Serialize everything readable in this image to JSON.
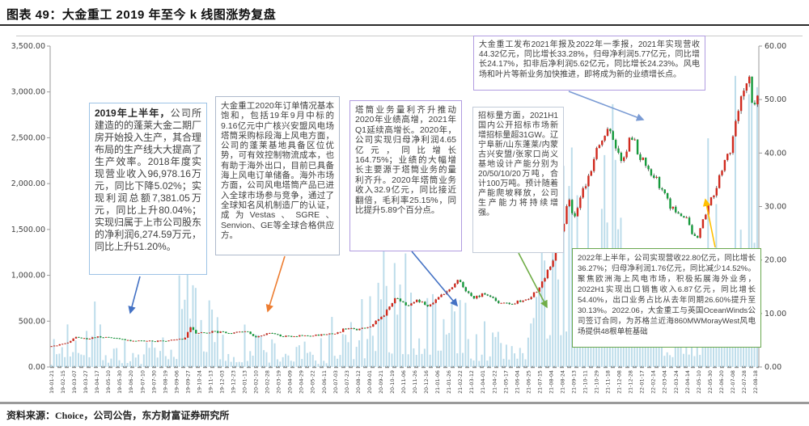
{
  "title": "图表 49：大金重工 2019 年至今 k 线图涨势复盘",
  "source": "资料来源：Choice，公司公告，东方财富证券研究所",
  "chart_data": {
    "type": "candlestick+volume",
    "title": "大金重工 2019 年至今 k 线图涨势复盘",
    "left_axis": {
      "role": "volume",
      "max": 3500,
      "step": 500,
      "ticks": [
        "3,500.00",
        "3,000.00",
        "2,500.00",
        "2,000.00",
        "1,500.00",
        "1,000.00",
        "500.00",
        "0.00"
      ]
    },
    "right_axis": {
      "role": "price",
      "max": 60,
      "step": 10,
      "ticks": [
        "60.00",
        "50.00",
        "40.00",
        "30.00",
        "20.00",
        "10.00",
        "0.00"
      ]
    },
    "x_ticks": [
      "19-01-21",
      "19-02-15",
      "19-03-07",
      "19-03-27",
      "19-04-17",
      "19-05-10",
      "19-05-30",
      "19-06-20",
      "19-07-10",
      "19-07-30",
      "19-08-19",
      "19-09-06",
      "19-09-27",
      "19-10-24",
      "19-11-13",
      "19-12-03",
      "19-12-23",
      "20-01-13",
      "20-02-10",
      "20-02-28",
      "20-03-19",
      "20-04-09",
      "20-04-29",
      "20-05-22",
      "20-06-11",
      "20-07-03",
      "20-07-23",
      "20-08-12",
      "20-09-01",
      "20-09-21",
      "20-10-19",
      "20-11-06",
      "20-11-26",
      "20-12-16",
      "21-01-06",
      "21-01-26",
      "21-02-22",
      "21-03-12",
      "21-04-01",
      "21-04-22",
      "21-05-17",
      "21-06-04",
      "21-06-25",
      "21-07-15",
      "21-08-04",
      "21-08-24",
      "21-09-13",
      "21-10-11",
      "21-10-29",
      "21-11-18",
      "21-12-08",
      "21-12-28",
      "22-01-17",
      "22-02-14",
      "22-03-04",
      "22-03-24",
      "22-04-14",
      "22-05-10",
      "22-05-30",
      "22-06-20",
      "22-07-08",
      "22-07-28",
      "22-08-18"
    ],
    "price_keypoints": [
      [
        0,
        3.8
      ],
      [
        0.02,
        4.4
      ],
      [
        0.034,
        5.5
      ],
      [
        0.05,
        5.3
      ],
      [
        0.066,
        5.7
      ],
      [
        0.09,
        5.4
      ],
      [
        0.115,
        4.9
      ],
      [
        0.145,
        4.8
      ],
      [
        0.175,
        5.0
      ],
      [
        0.188,
        5.3
      ],
      [
        0.196,
        7.4
      ],
      [
        0.205,
        6.2
      ],
      [
        0.227,
        6.6
      ],
      [
        0.258,
        6.4
      ],
      [
        0.274,
        6.8
      ],
      [
        0.29,
        5.6
      ],
      [
        0.309,
        6.4
      ],
      [
        0.327,
        5.7
      ],
      [
        0.373,
        5.9
      ],
      [
        0.405,
        6.3
      ],
      [
        0.415,
        7.2
      ],
      [
        0.436,
        7.0
      ],
      [
        0.451,
        7.6
      ],
      [
        0.47,
        9.5
      ],
      [
        0.488,
        13.4
      ],
      [
        0.502,
        11.4
      ],
      [
        0.517,
        12.3
      ],
      [
        0.533,
        11.5
      ],
      [
        0.549,
        13.0
      ],
      [
        0.564,
        14.5
      ],
      [
        0.575,
        16.3
      ],
      [
        0.596,
        13.0
      ],
      [
        0.614,
        13.6
      ],
      [
        0.633,
        12.2
      ],
      [
        0.649,
        11.8
      ],
      [
        0.663,
        12.4
      ],
      [
        0.679,
        13.1
      ],
      [
        0.694,
        15.5
      ],
      [
        0.71,
        20.0
      ],
      [
        0.725,
        26.5
      ],
      [
        0.733,
        31.5
      ],
      [
        0.74,
        27.5
      ],
      [
        0.753,
        33.0
      ],
      [
        0.768,
        38.5
      ],
      [
        0.777,
        43.0
      ],
      [
        0.791,
        44.8
      ],
      [
        0.806,
        38.0
      ],
      [
        0.821,
        43.5
      ],
      [
        0.837,
        38.5
      ],
      [
        0.858,
        35.0
      ],
      [
        0.877,
        30.0
      ],
      [
        0.899,
        27.5
      ],
      [
        0.913,
        23.5
      ],
      [
        0.931,
        30.0
      ],
      [
        0.947,
        35.5
      ],
      [
        0.963,
        41.0
      ],
      [
        0.974,
        48.0
      ],
      [
        0.987,
        54.8
      ],
      [
        0.993,
        49.5
      ],
      [
        1,
        50.5
      ]
    ],
    "volume_keypoints": [
      [
        0,
        110
      ],
      [
        0.03,
        420
      ],
      [
        0.05,
        500
      ],
      [
        0.08,
        200
      ],
      [
        0.12,
        130
      ],
      [
        0.17,
        150
      ],
      [
        0.19,
        800
      ],
      [
        0.205,
        900
      ],
      [
        0.23,
        300
      ],
      [
        0.26,
        180
      ],
      [
        0.285,
        260
      ],
      [
        0.33,
        160
      ],
      [
        0.38,
        140
      ],
      [
        0.42,
        300
      ],
      [
        0.45,
        420
      ],
      [
        0.49,
        650
      ],
      [
        0.52,
        540
      ],
      [
        0.55,
        420
      ],
      [
        0.565,
        520
      ],
      [
        0.6,
        300
      ],
      [
        0.64,
        220
      ],
      [
        0.67,
        300
      ],
      [
        0.7,
        900
      ],
      [
        0.72,
        1500
      ],
      [
        0.735,
        1900
      ],
      [
        0.755,
        1400
      ],
      [
        0.775,
        1200
      ],
      [
        0.79,
        1500
      ],
      [
        0.81,
        1000
      ],
      [
        0.825,
        1200
      ],
      [
        0.84,
        800
      ],
      [
        0.86,
        600
      ],
      [
        0.88,
        450
      ],
      [
        0.9,
        500
      ],
      [
        0.915,
        550
      ],
      [
        0.93,
        700
      ],
      [
        0.95,
        1100
      ],
      [
        0.965,
        1500
      ],
      [
        0.975,
        2200
      ],
      [
        0.985,
        2600
      ],
      [
        1,
        1700
      ]
    ],
    "candle_count": 260,
    "colors": {
      "up": "#d02a1e",
      "down": "#169a3c",
      "wick": "#2b2b2b",
      "volume": "#b5d8e8",
      "axis": "#9a9a9a",
      "tick_text": "#404040"
    }
  },
  "annotations": [
    {
      "lead": "2019年上半年，",
      "text": "公司所建造的的蓬莱大金二期厂房开始投入生产，其合理布局的生产线大大提高了生产效率。2018年度实现营业收入96,978.16万元，同比下降5.02%；实现利润总额7,381.05万元，同比上升80.04%；实现归属于上市公司股东的净利润6,274.59万元，同比上升51.20%。",
      "border": "#9dc3e6"
    },
    {
      "lead": "",
      "text": "大金重工2020年订单情况基本饱和，包括19年9月中标的9.16亿元中广核兴安盟风电场塔筒采购标段海上风电方面，公司的蓬莱基地具备区位优势，可有效控制物流成本，也有助于海外出口，目前已具备海上风电订单储备。海外市场方面，公司风电塔筒产品已进入全球市场参与竞争，通过了全球知名风机制造厂的认证，成为Vestas、SGRE、Senvion、GE等全球合格供应方。",
      "border": "#aeb9cc"
    },
    {
      "lead": "",
      "text": "塔筒业务量利齐升推动2020年业绩高增，2021年Q1延续高增长。2020年，公司实现归母净利润4.65亿元，同比增长164.75%；业绩的大幅增长主要源于塔筒业务的量利齐升。2020年塔筒业务收入32.9亿元，同比接近翻倍，毛利率25.15%，同比提升5.89个百分点。",
      "border": "#b19ce0"
    },
    {
      "lead": "",
      "text": "招标量方面，2021H1国内公开招标市场新增招标量超31GW。辽宁阜新/山东蓬莱/内蒙古兴安盟/张家口尚义基地设计产能分别为20/50/10/20万吨，合计100万吨。预计随着产能爬坡释放，公司生产能力将持续增强。",
      "border": "#c3cbd9"
    },
    {
      "lead": "",
      "text": "大金重工发布2021年报及2022年一季报，2021年实现营收44.32亿元，同比增长33.28%，归母净利润5.77亿元，同比增长24.17%，扣非后净利润5.62亿元，同比增长24.23%。风电场和叶片等新业务加快推进，即将成为新的业绩增长点。",
      "border": "#b19ce0"
    },
    {
      "lead": "",
      "text": "2022年上半年，公司实现营收22.80亿元，同比增长36.27%；归母净利润1.76亿元，同比减少14.52%。聚焦欧洲海上风电市场，积极拓展海外业务，2022H1实现出口销售收入6.87亿元，同比增长54.40%，出口业务占比从去年同期26.60%提升至30.13%。2022.06，大金重工与英国OceanWinds公司签订合同，为苏格兰近海860MWMorayWest风电场提供48根单桩基础",
      "border": "#6aa84f"
    }
  ]
}
